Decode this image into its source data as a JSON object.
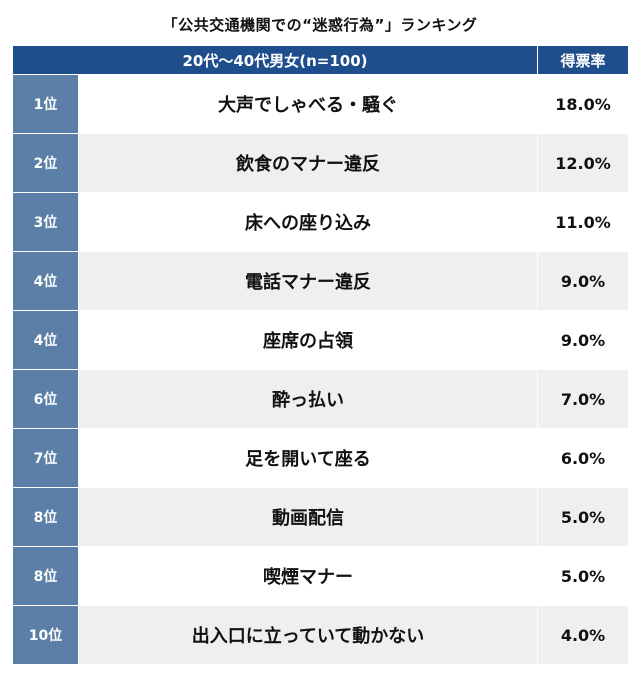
{
  "title": "「公共交通機関での“迷惑行為”」ランキング",
  "table": {
    "header_group": "20代〜40代男女(n=100)",
    "header_rate": "得票率",
    "rows": [
      {
        "rank": "1位",
        "item": "大声でしゃべる・騒ぐ",
        "rate": "18.0%"
      },
      {
        "rank": "2位",
        "item": "飲食のマナー違反",
        "rate": "12.0%"
      },
      {
        "rank": "3位",
        "item": "床への座り込み",
        "rate": "11.0%"
      },
      {
        "rank": "4位",
        "item": "電話マナー違反",
        "rate": "9.0%"
      },
      {
        "rank": "4位",
        "item": "座席の占領",
        "rate": "9.0%"
      },
      {
        "rank": "6位",
        "item": "酔っ払い",
        "rate": "7.0%"
      },
      {
        "rank": "7位",
        "item": "足を開いて座る",
        "rate": "6.0%"
      },
      {
        "rank": "8位",
        "item": "動画配信",
        "rate": "5.0%"
      },
      {
        "rank": "8位",
        "item": "喫煙マナー",
        "rate": "5.0%"
      },
      {
        "rank": "10位",
        "item": "出入口に立っていて動かない",
        "rate": "4.0%"
      }
    ]
  },
  "colors": {
    "header_bg": "#1f4e8c",
    "rank_bg": "#5b7fa7",
    "stripe_bg": "#efefef"
  }
}
